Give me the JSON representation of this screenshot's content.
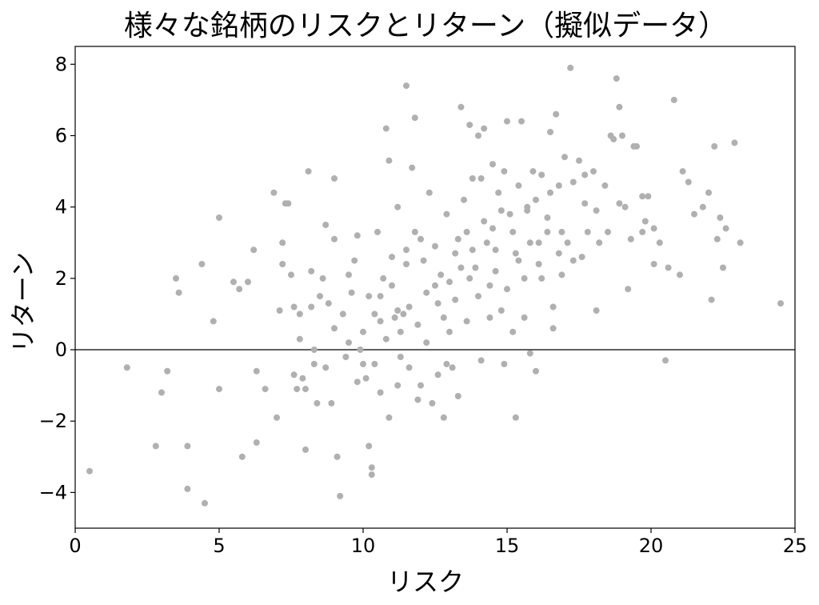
{
  "chart_data": {
    "type": "scatter",
    "title": "様々な銘柄のリスクとリターン（擬似データ）",
    "xlabel": "リスク",
    "ylabel": "リターン",
    "xlim": [
      0,
      25
    ],
    "ylim": [
      -5,
      8.5
    ],
    "xticks": [
      "0",
      "5",
      "10",
      "15",
      "20",
      "25"
    ],
    "yticks": [
      "−4",
      "−2",
      "0",
      "2",
      "4",
      "6",
      "8"
    ],
    "hline": 0,
    "grid": false,
    "point_color": "#b0b0b0",
    "points": [
      [
        0.5,
        -3.4
      ],
      [
        1.8,
        -0.5
      ],
      [
        2.8,
        -2.7
      ],
      [
        3.0,
        -1.2
      ],
      [
        3.2,
        -0.6
      ],
      [
        3.5,
        2.0
      ],
      [
        3.6,
        1.6
      ],
      [
        3.9,
        -3.9
      ],
      [
        3.9,
        -2.7
      ],
      [
        4.4,
        2.4
      ],
      [
        4.5,
        -4.3
      ],
      [
        4.8,
        0.8
      ],
      [
        5.0,
        3.7
      ],
      [
        5.0,
        -1.1
      ],
      [
        5.5,
        1.9
      ],
      [
        5.7,
        1.7
      ],
      [
        5.8,
        -3.0
      ],
      [
        6.0,
        1.9
      ],
      [
        6.2,
        2.8
      ],
      [
        6.3,
        -0.6
      ],
      [
        6.3,
        -2.6
      ],
      [
        6.6,
        -1.1
      ],
      [
        6.9,
        4.4
      ],
      [
        7.0,
        -1.9
      ],
      [
        7.1,
        1.1
      ],
      [
        7.2,
        3.0
      ],
      [
        7.2,
        2.4
      ],
      [
        7.3,
        4.1
      ],
      [
        7.4,
        4.1
      ],
      [
        7.5,
        2.1
      ],
      [
        7.6,
        1.2
      ],
      [
        7.6,
        -0.7
      ],
      [
        7.7,
        -1.1
      ],
      [
        7.8,
        0.3
      ],
      [
        7.8,
        1.0
      ],
      [
        7.9,
        -0.8
      ],
      [
        8.0,
        -2.8
      ],
      [
        8.0,
        -1.1
      ],
      [
        8.1,
        5.0
      ],
      [
        8.2,
        1.2
      ],
      [
        8.2,
        2.2
      ],
      [
        8.3,
        0.0
      ],
      [
        8.3,
        -0.4
      ],
      [
        8.4,
        -1.5
      ],
      [
        8.5,
        1.5
      ],
      [
        8.6,
        2.0
      ],
      [
        8.7,
        3.5
      ],
      [
        8.7,
        -0.5
      ],
      [
        8.8,
        1.3
      ],
      [
        8.9,
        -1.5
      ],
      [
        9.0,
        4.8
      ],
      [
        9.0,
        3.1
      ],
      [
        9.0,
        0.6
      ],
      [
        9.1,
        -3.0
      ],
      [
        9.2,
        -4.1
      ],
      [
        9.3,
        1.0
      ],
      [
        9.4,
        -0.2
      ],
      [
        9.5,
        2.1
      ],
      [
        9.6,
        1.6
      ],
      [
        9.7,
        2.5
      ],
      [
        9.8,
        3.2
      ],
      [
        9.9,
        0.0
      ],
      [
        10.0,
        -0.4
      ],
      [
        10.1,
        -0.8
      ],
      [
        10.2,
        -2.7
      ],
      [
        10.3,
        -3.3
      ],
      [
        10.3,
        -3.5
      ],
      [
        10.4,
        1.0
      ],
      [
        10.5,
        3.3
      ],
      [
        10.6,
        -1.2
      ],
      [
        10.6,
        1.5
      ],
      [
        10.7,
        2.0
      ],
      [
        10.8,
        6.2
      ],
      [
        10.9,
        5.3
      ],
      [
        10.9,
        -1.9
      ],
      [
        11.0,
        2.6
      ],
      [
        11.1,
        0.9
      ],
      [
        11.2,
        4.0
      ],
      [
        11.2,
        -1.0
      ],
      [
        11.3,
        0.5
      ],
      [
        11.4,
        1.0
      ],
      [
        11.5,
        7.4
      ],
      [
        11.5,
        2.4
      ],
      [
        11.6,
        -0.5
      ],
      [
        11.7,
        5.1
      ],
      [
        11.8,
        6.5
      ],
      [
        11.9,
        -1.4
      ],
      [
        12.0,
        3.1
      ],
      [
        12.2,
        0.2
      ],
      [
        12.3,
        4.4
      ],
      [
        12.5,
        1.8
      ],
      [
        12.6,
        -0.7
      ],
      [
        12.7,
        2.1
      ],
      [
        12.8,
        -1.9
      ],
      [
        12.9,
        3.8
      ],
      [
        13.0,
        0.5
      ],
      [
        13.1,
        -0.5
      ],
      [
        13.2,
        2.7
      ],
      [
        13.3,
        -1.3
      ],
      [
        13.4,
        6.8
      ],
      [
        13.5,
        4.2
      ],
      [
        13.6,
        3.3
      ],
      [
        13.7,
        6.3
      ],
      [
        13.8,
        4.8
      ],
      [
        13.9,
        2.3
      ],
      [
        14.0,
        6.0
      ],
      [
        14.1,
        -0.3
      ],
      [
        14.2,
        6.2
      ],
      [
        14.3,
        3.0
      ],
      [
        14.4,
        1.8
      ],
      [
        14.5,
        5.2
      ],
      [
        14.6,
        2.8
      ],
      [
        14.7,
        4.4
      ],
      [
        14.8,
        1.1
      ],
      [
        14.9,
        -0.4
      ],
      [
        15.0,
        6.4
      ],
      [
        15.1,
        3.8
      ],
      [
        15.2,
        0.5
      ],
      [
        15.3,
        -1.9
      ],
      [
        15.4,
        4.6
      ],
      [
        15.5,
        6.4
      ],
      [
        15.6,
        2.0
      ],
      [
        15.7,
        4.0
      ],
      [
        15.8,
        -0.1
      ],
      [
        15.9,
        5.0
      ],
      [
        16.0,
        -0.6
      ],
      [
        16.1,
        3.0
      ],
      [
        16.2,
        4.9
      ],
      [
        16.4,
        3.3
      ],
      [
        16.5,
        6.1
      ],
      [
        16.6,
        1.2
      ],
      [
        16.7,
        6.6
      ],
      [
        16.8,
        4.6
      ],
      [
        16.9,
        2.1
      ],
      [
        17.0,
        5.4
      ],
      [
        17.1,
        3.0
      ],
      [
        17.2,
        7.9
      ],
      [
        17.3,
        4.7
      ],
      [
        17.5,
        5.3
      ],
      [
        17.6,
        2.6
      ],
      [
        17.7,
        4.1
      ],
      [
        17.8,
        3.3
      ],
      [
        18.0,
        5.0
      ],
      [
        18.1,
        1.1
      ],
      [
        18.2,
        3.0
      ],
      [
        18.4,
        4.6
      ],
      [
        18.6,
        6.0
      ],
      [
        18.7,
        5.9
      ],
      [
        18.8,
        7.6
      ],
      [
        18.9,
        6.8
      ],
      [
        19.0,
        6.0
      ],
      [
        19.1,
        4.0
      ],
      [
        19.2,
        1.7
      ],
      [
        19.4,
        5.7
      ],
      [
        19.5,
        5.7
      ],
      [
        19.7,
        3.3
      ],
      [
        19.8,
        3.6
      ],
      [
        19.9,
        4.3
      ],
      [
        20.1,
        2.4
      ],
      [
        20.3,
        3.0
      ],
      [
        20.5,
        -0.3
      ],
      [
        20.6,
        2.3
      ],
      [
        20.8,
        7.0
      ],
      [
        21.0,
        2.1
      ],
      [
        21.1,
        5.0
      ],
      [
        21.3,
        4.7
      ],
      [
        21.5,
        3.8
      ],
      [
        21.8,
        4.0
      ],
      [
        22.0,
        4.4
      ],
      [
        22.1,
        1.4
      ],
      [
        22.2,
        5.7
      ],
      [
        22.3,
        3.1
      ],
      [
        22.4,
        3.7
      ],
      [
        22.5,
        2.3
      ],
      [
        22.6,
        3.4
      ],
      [
        22.9,
        5.8
      ],
      [
        23.1,
        3.0
      ],
      [
        24.5,
        1.3
      ],
      [
        10.2,
        1.5
      ],
      [
        10.8,
        0.3
      ],
      [
        11.0,
        1.8
      ],
      [
        11.3,
        -0.2
      ],
      [
        11.6,
        1.2
      ],
      [
        11.9,
        0.7
      ],
      [
        12.1,
        2.5
      ],
      [
        12.4,
        -1.5
      ],
      [
        12.6,
        1.3
      ],
      [
        12.8,
        0.9
      ],
      [
        13.0,
        1.9
      ],
      [
        13.2,
        1.4
      ],
      [
        13.4,
        2.3
      ],
      [
        13.6,
        0.8
      ],
      [
        13.8,
        2.8
      ],
      [
        14.0,
        1.5
      ],
      [
        14.2,
        3.6
      ],
      [
        14.4,
        0.9
      ],
      [
        14.6,
        2.2
      ],
      [
        14.8,
        3.9
      ],
      [
        15.0,
        1.7
      ],
      [
        15.2,
        3.3
      ],
      [
        15.4,
        2.5
      ],
      [
        15.6,
        0.9
      ],
      [
        15.8,
        3.0
      ],
      [
        16.0,
        4.2
      ],
      [
        16.2,
        2.0
      ],
      [
        16.4,
        3.7
      ],
      [
        16.6,
        0.6
      ],
      [
        16.8,
        2.7
      ],
      [
        9.5,
        0.2
      ],
      [
        9.8,
        -0.9
      ],
      [
        10.0,
        0.5
      ],
      [
        10.4,
        -0.4
      ],
      [
        10.6,
        0.8
      ],
      [
        11.2,
        1.1
      ],
      [
        11.5,
        2.8
      ],
      [
        11.8,
        3.3
      ],
      [
        12.0,
        -1.0
      ],
      [
        12.2,
        1.6
      ],
      [
        12.5,
        2.9
      ],
      [
        12.9,
        -0.4
      ],
      [
        13.3,
        3.1
      ],
      [
        13.7,
        2.0
      ],
      [
        14.1,
        4.8
      ],
      [
        14.5,
        3.4
      ],
      [
        14.9,
        5.0
      ],
      [
        15.3,
        2.7
      ],
      [
        15.7,
        3.9
      ],
      [
        16.1,
        2.4
      ],
      [
        16.5,
        4.4
      ],
      [
        16.9,
        3.3
      ],
      [
        17.3,
        2.5
      ],
      [
        17.7,
        4.9
      ],
      [
        18.1,
        3.9
      ],
      [
        18.5,
        3.3
      ],
      [
        18.9,
        4.1
      ],
      [
        19.3,
        3.1
      ],
      [
        19.7,
        4.3
      ],
      [
        20.1,
        3.4
      ]
    ]
  }
}
